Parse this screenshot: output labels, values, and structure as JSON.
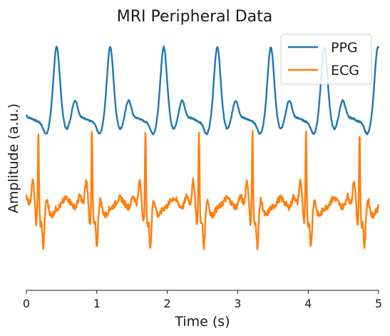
{
  "chart_data": {
    "type": "line",
    "title": "MRI Peripheral Data",
    "xlabel": "Time (s)",
    "ylabel": "Amplitude (a.u.)",
    "xlim": [
      0,
      5
    ],
    "xticks": [
      "0",
      "1",
      "2",
      "3",
      "4",
      "5"
    ],
    "grid": false,
    "legend_position": "top-right",
    "series": [
      {
        "name": "PPG",
        "color": "#1f77b4",
        "peak_times": [
          0.43,
          1.19,
          1.95,
          2.71,
          3.47,
          4.23
        ],
        "period": 0.76
      },
      {
        "name": "ECG",
        "color": "#ff7f0e",
        "r_peak_times": [
          0.17,
          0.93,
          1.69,
          2.45,
          3.21,
          3.97,
          4.73
        ],
        "period": 0.76
      }
    ]
  }
}
